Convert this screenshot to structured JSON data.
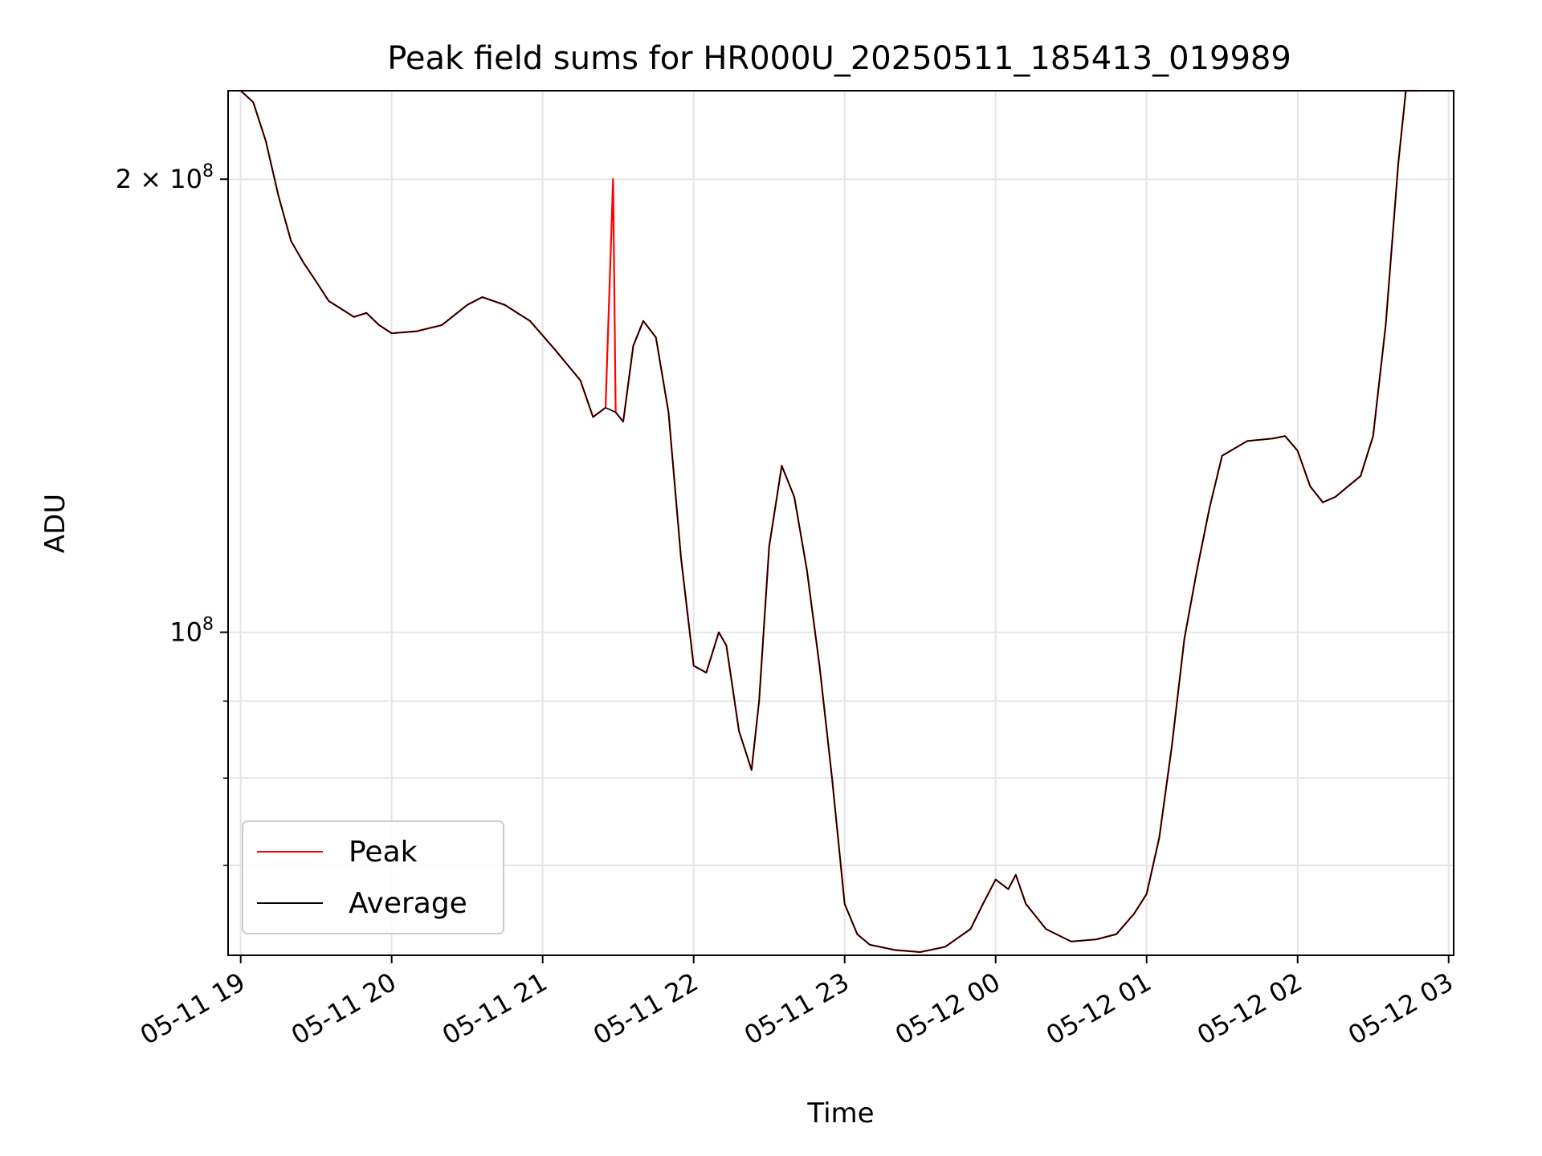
{
  "chart_data": {
    "type": "line",
    "title": "Peak field sums for HR000U_20250511_185413_019989",
    "xlabel": "Time",
    "ylabel": "ADU",
    "yscale": "log",
    "grid": true,
    "legend_position": "lower-left",
    "xlim": [
      "2025-05-11 18:55",
      "2025-05-12 03:02"
    ],
    "ylim": [
      61000000,
      229000000
    ],
    "x_ticks": [
      {
        "time": "2025-05-11 19:00",
        "label": "05-11 19"
      },
      {
        "time": "2025-05-11 20:00",
        "label": "05-11 20"
      },
      {
        "time": "2025-05-11 21:00",
        "label": "05-11 21"
      },
      {
        "time": "2025-05-11 22:00",
        "label": "05-11 22"
      },
      {
        "time": "2025-05-11 23:00",
        "label": "05-11 23"
      },
      {
        "time": "2025-05-12 00:00",
        "label": "05-12 00"
      },
      {
        "time": "2025-05-12 01:00",
        "label": "05-12 01"
      },
      {
        "time": "2025-05-12 02:00",
        "label": "05-12 02"
      },
      {
        "time": "2025-05-12 03:00",
        "label": "05-12 03"
      }
    ],
    "y_ticks_major": [
      {
        "value": 100000000,
        "base": "10",
        "exp": "8",
        "mantissa": ""
      },
      {
        "value": 200000000,
        "base": "10",
        "exp": "8",
        "mantissa": "2 × "
      }
    ],
    "y_ticks_minor": [
      70000000,
      80000000,
      90000000
    ],
    "series": [
      {
        "name": "Peak",
        "color": "#ff0000",
        "points": [
          [
            "2025-05-11 19:00",
            229000000
          ],
          [
            "2025-05-11 19:05",
            225000000
          ],
          [
            "2025-05-11 19:10",
            212000000
          ],
          [
            "2025-05-11 19:15",
            195000000
          ],
          [
            "2025-05-11 19:20",
            182000000
          ],
          [
            "2025-05-11 19:25",
            176000000
          ],
          [
            "2025-05-11 19:30",
            171000000
          ],
          [
            "2025-05-11 19:35",
            166000000
          ],
          [
            "2025-05-11 19:40",
            164000000
          ],
          [
            "2025-05-11 19:45",
            162000000
          ],
          [
            "2025-05-11 19:50",
            163000000
          ],
          [
            "2025-05-11 19:55",
            160000000
          ],
          [
            "2025-05-11 20:00",
            158000000
          ],
          [
            "2025-05-11 20:10",
            158500000
          ],
          [
            "2025-05-11 20:20",
            160000000
          ],
          [
            "2025-05-11 20:30",
            165000000
          ],
          [
            "2025-05-11 20:36",
            167000000
          ],
          [
            "2025-05-11 20:45",
            165000000
          ],
          [
            "2025-05-11 20:55",
            161000000
          ],
          [
            "2025-05-11 21:05",
            154000000
          ],
          [
            "2025-05-11 21:15",
            147000000
          ],
          [
            "2025-05-11 21:20",
            139000000
          ],
          [
            "2025-05-11 21:25",
            141000000
          ],
          [
            "2025-05-11 21:28",
            200000000
          ],
          [
            "2025-05-11 21:29",
            140000000
          ],
          [
            "2025-05-11 21:32",
            138000000
          ],
          [
            "2025-05-11 21:36",
            155000000
          ],
          [
            "2025-05-11 21:40",
            161000000
          ],
          [
            "2025-05-11 21:45",
            157000000
          ],
          [
            "2025-05-11 21:50",
            140000000
          ],
          [
            "2025-05-11 21:55",
            112000000
          ],
          [
            "2025-05-11 22:00",
            95000000
          ],
          [
            "2025-05-11 22:05",
            94000000
          ],
          [
            "2025-05-11 22:10",
            100000000
          ],
          [
            "2025-05-11 22:13",
            98000000
          ],
          [
            "2025-05-11 22:18",
            86000000
          ],
          [
            "2025-05-11 22:23",
            81000000
          ],
          [
            "2025-05-11 22:26",
            90000000
          ],
          [
            "2025-05-11 22:30",
            114000000
          ],
          [
            "2025-05-11 22:35",
            129000000
          ],
          [
            "2025-05-11 22:40",
            123000000
          ],
          [
            "2025-05-11 22:45",
            110000000
          ],
          [
            "2025-05-11 22:50",
            95000000
          ],
          [
            "2025-05-11 22:55",
            80000000
          ],
          [
            "2025-05-11 23:00",
            66000000
          ],
          [
            "2025-05-11 23:05",
            63000000
          ],
          [
            "2025-05-11 23:10",
            62000000
          ],
          [
            "2025-05-11 23:20",
            61500000
          ],
          [
            "2025-05-11 23:30",
            61300000
          ],
          [
            "2025-05-11 23:40",
            61800000
          ],
          [
            "2025-05-11 23:50",
            63500000
          ],
          [
            "2025-05-11 23:55",
            66000000
          ],
          [
            "2025-05-12 00:00",
            68500000
          ],
          [
            "2025-05-12 00:05",
            67500000
          ],
          [
            "2025-05-12 00:08",
            69000000
          ],
          [
            "2025-05-12 00:12",
            66000000
          ],
          [
            "2025-05-12 00:20",
            63500000
          ],
          [
            "2025-05-12 00:30",
            62300000
          ],
          [
            "2025-05-12 00:40",
            62500000
          ],
          [
            "2025-05-12 00:48",
            63000000
          ],
          [
            "2025-05-12 00:55",
            65000000
          ],
          [
            "2025-05-12 01:00",
            67000000
          ],
          [
            "2025-05-12 01:05",
            73000000
          ],
          [
            "2025-05-12 01:10",
            84000000
          ],
          [
            "2025-05-12 01:15",
            99000000
          ],
          [
            "2025-05-12 01:20",
            110000000
          ],
          [
            "2025-05-12 01:25",
            121000000
          ],
          [
            "2025-05-12 01:30",
            131000000
          ],
          [
            "2025-05-12 01:40",
            134000000
          ],
          [
            "2025-05-12 01:50",
            134500000
          ],
          [
            "2025-05-12 01:55",
            135000000
          ],
          [
            "2025-05-12 02:00",
            132000000
          ],
          [
            "2025-05-12 02:05",
            125000000
          ],
          [
            "2025-05-12 02:10",
            122000000
          ],
          [
            "2025-05-12 02:15",
            123000000
          ],
          [
            "2025-05-12 02:20",
            125000000
          ],
          [
            "2025-05-12 02:25",
            127000000
          ],
          [
            "2025-05-12 02:30",
            135000000
          ],
          [
            "2025-05-12 02:35",
            160000000
          ],
          [
            "2025-05-12 02:40",
            205000000
          ],
          [
            "2025-05-12 02:43",
            229000000
          ],
          [
            "2025-05-12 02:48",
            229000000
          ]
        ]
      },
      {
        "name": "Average",
        "color": "#000000",
        "points": [
          [
            "2025-05-11 19:00",
            229000000
          ],
          [
            "2025-05-11 19:05",
            225000000
          ],
          [
            "2025-05-11 19:10",
            212000000
          ],
          [
            "2025-05-11 19:15",
            195000000
          ],
          [
            "2025-05-11 19:20",
            182000000
          ],
          [
            "2025-05-11 19:25",
            176000000
          ],
          [
            "2025-05-11 19:30",
            171000000
          ],
          [
            "2025-05-11 19:35",
            166000000
          ],
          [
            "2025-05-11 19:40",
            164000000
          ],
          [
            "2025-05-11 19:45",
            162000000
          ],
          [
            "2025-05-11 19:50",
            163000000
          ],
          [
            "2025-05-11 19:55",
            160000000
          ],
          [
            "2025-05-11 20:00",
            158000000
          ],
          [
            "2025-05-11 20:10",
            158500000
          ],
          [
            "2025-05-11 20:20",
            160000000
          ],
          [
            "2025-05-11 20:30",
            165000000
          ],
          [
            "2025-05-11 20:36",
            167000000
          ],
          [
            "2025-05-11 20:45",
            165000000
          ],
          [
            "2025-05-11 20:55",
            161000000
          ],
          [
            "2025-05-11 21:05",
            154000000
          ],
          [
            "2025-05-11 21:15",
            147000000
          ],
          [
            "2025-05-11 21:20",
            139000000
          ],
          [
            "2025-05-11 21:25",
            141000000
          ],
          [
            "2025-05-11 21:29",
            140000000
          ],
          [
            "2025-05-11 21:32",
            138000000
          ],
          [
            "2025-05-11 21:36",
            155000000
          ],
          [
            "2025-05-11 21:40",
            161000000
          ],
          [
            "2025-05-11 21:45",
            157000000
          ],
          [
            "2025-05-11 21:50",
            140000000
          ],
          [
            "2025-05-11 21:55",
            112000000
          ],
          [
            "2025-05-11 22:00",
            95000000
          ],
          [
            "2025-05-11 22:05",
            94000000
          ],
          [
            "2025-05-11 22:10",
            100000000
          ],
          [
            "2025-05-11 22:13",
            98000000
          ],
          [
            "2025-05-11 22:18",
            86000000
          ],
          [
            "2025-05-11 22:23",
            81000000
          ],
          [
            "2025-05-11 22:26",
            90000000
          ],
          [
            "2025-05-11 22:30",
            114000000
          ],
          [
            "2025-05-11 22:35",
            129000000
          ],
          [
            "2025-05-11 22:40",
            123000000
          ],
          [
            "2025-05-11 22:45",
            110000000
          ],
          [
            "2025-05-11 22:50",
            95000000
          ],
          [
            "2025-05-11 22:55",
            80000000
          ],
          [
            "2025-05-11 23:00",
            66000000
          ],
          [
            "2025-05-11 23:05",
            63000000
          ],
          [
            "2025-05-11 23:10",
            62000000
          ],
          [
            "2025-05-11 23:20",
            61500000
          ],
          [
            "2025-05-11 23:30",
            61300000
          ],
          [
            "2025-05-11 23:40",
            61800000
          ],
          [
            "2025-05-11 23:50",
            63500000
          ],
          [
            "2025-05-11 23:55",
            66000000
          ],
          [
            "2025-05-12 00:00",
            68500000
          ],
          [
            "2025-05-12 00:05",
            67500000
          ],
          [
            "2025-05-12 00:08",
            69000000
          ],
          [
            "2025-05-12 00:12",
            66000000
          ],
          [
            "2025-05-12 00:20",
            63500000
          ],
          [
            "2025-05-12 00:30",
            62300000
          ],
          [
            "2025-05-12 00:40",
            62500000
          ],
          [
            "2025-05-12 00:48",
            63000000
          ],
          [
            "2025-05-12 00:55",
            65000000
          ],
          [
            "2025-05-12 01:00",
            67000000
          ],
          [
            "2025-05-12 01:05",
            73000000
          ],
          [
            "2025-05-12 01:10",
            84000000
          ],
          [
            "2025-05-12 01:15",
            99000000
          ],
          [
            "2025-05-12 01:20",
            110000000
          ],
          [
            "2025-05-12 01:25",
            121000000
          ],
          [
            "2025-05-12 01:30",
            131000000
          ],
          [
            "2025-05-12 01:40",
            134000000
          ],
          [
            "2025-05-12 01:50",
            134500000
          ],
          [
            "2025-05-12 01:55",
            135000000
          ],
          [
            "2025-05-12 02:00",
            132000000
          ],
          [
            "2025-05-12 02:05",
            125000000
          ],
          [
            "2025-05-12 02:10",
            122000000
          ],
          [
            "2025-05-12 02:15",
            123000000
          ],
          [
            "2025-05-12 02:20",
            125000000
          ],
          [
            "2025-05-12 02:25",
            127000000
          ],
          [
            "2025-05-12 02:30",
            135000000
          ],
          [
            "2025-05-12 02:35",
            160000000
          ],
          [
            "2025-05-12 02:40",
            205000000
          ],
          [
            "2025-05-12 02:43",
            229000000
          ],
          [
            "2025-05-12 02:48",
            229000000
          ]
        ]
      }
    ],
    "legend": [
      {
        "label": "Peak",
        "color": "#ff0000"
      },
      {
        "label": "Average",
        "color": "#000000"
      }
    ]
  }
}
